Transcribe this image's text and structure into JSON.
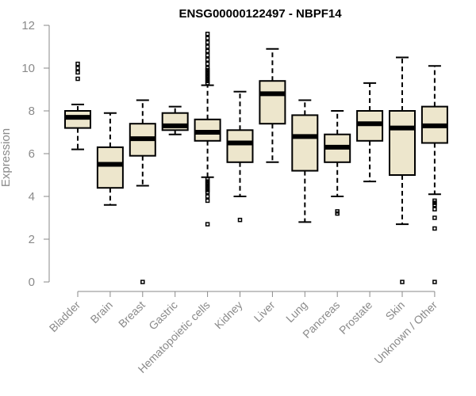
{
  "chart_data": {
    "type": "boxplot",
    "title": "ENSG00000122497 - NBPF14",
    "xlabel": "",
    "ylabel": "Expression",
    "ylim": [
      0,
      12
    ],
    "yticks": [
      0,
      2,
      4,
      6,
      8,
      10,
      12
    ],
    "colors": {
      "box_fill": "#ede6cc",
      "axis": "#8a8a8a",
      "stroke": "#000000"
    },
    "categories": [
      "Bladder",
      "Brain",
      "Breast",
      "Gastric",
      "Hematopoietic cells",
      "Kidney",
      "Liver",
      "Lung",
      "Pancreas",
      "Prostate",
      "Skin",
      "Unknown / Other"
    ],
    "boxes": [
      {
        "name": "Bladder",
        "whisker_low": 6.2,
        "q1": 7.2,
        "median": 7.7,
        "q3": 8.0,
        "whisker_high": 8.3,
        "outliers": [
          9.5,
          9.8,
          10.0,
          10.2
        ]
      },
      {
        "name": "Brain",
        "whisker_low": 3.6,
        "q1": 4.4,
        "median": 5.5,
        "q3": 6.3,
        "whisker_high": 7.9,
        "outliers": []
      },
      {
        "name": "Breast",
        "whisker_low": 4.5,
        "q1": 5.9,
        "median": 6.7,
        "q3": 7.4,
        "whisker_high": 8.5,
        "outliers": [
          0.0
        ]
      },
      {
        "name": "Gastric",
        "whisker_low": 6.9,
        "q1": 7.1,
        "median": 7.3,
        "q3": 7.9,
        "whisker_high": 8.2,
        "outliers": []
      },
      {
        "name": "Hematopoietic cells",
        "whisker_low": 4.9,
        "q1": 6.6,
        "median": 7.0,
        "q3": 7.6,
        "whisker_high": 9.2,
        "outliers": [
          2.7,
          3.8,
          4.0,
          4.2,
          4.3,
          4.4,
          4.5,
          4.6,
          4.7,
          4.8,
          9.3,
          9.4,
          9.5,
          9.6,
          9.7,
          9.8,
          9.9,
          10.0,
          10.2,
          10.4,
          10.6,
          10.8,
          11.0,
          11.2,
          11.4,
          11.6
        ]
      },
      {
        "name": "Kidney",
        "whisker_low": 4.0,
        "q1": 5.6,
        "median": 6.5,
        "q3": 7.1,
        "whisker_high": 8.9,
        "outliers": [
          2.9
        ]
      },
      {
        "name": "Liver",
        "whisker_low": 5.6,
        "q1": 7.4,
        "median": 8.8,
        "q3": 9.4,
        "whisker_high": 10.9,
        "outliers": []
      },
      {
        "name": "Lung",
        "whisker_low": 2.8,
        "q1": 5.2,
        "median": 6.8,
        "q3": 7.8,
        "whisker_high": 8.5,
        "outliers": []
      },
      {
        "name": "Pancreas",
        "whisker_low": 4.0,
        "q1": 5.6,
        "median": 6.3,
        "q3": 6.9,
        "whisker_high": 8.0,
        "outliers": [
          3.2,
          3.3
        ]
      },
      {
        "name": "Prostate",
        "whisker_low": 4.7,
        "q1": 6.6,
        "median": 7.4,
        "q3": 8.0,
        "whisker_high": 9.3,
        "outliers": []
      },
      {
        "name": "Skin",
        "whisker_low": 2.7,
        "q1": 5.0,
        "median": 7.2,
        "q3": 8.0,
        "whisker_high": 10.5,
        "outliers": [
          0.0
        ]
      },
      {
        "name": "Unknown / Other",
        "whisker_low": 4.1,
        "q1": 6.5,
        "median": 7.3,
        "q3": 8.2,
        "whisker_high": 10.1,
        "outliers": [
          0.0,
          2.5,
          3.0,
          3.4,
          3.6,
          3.7,
          3.8
        ]
      }
    ]
  }
}
